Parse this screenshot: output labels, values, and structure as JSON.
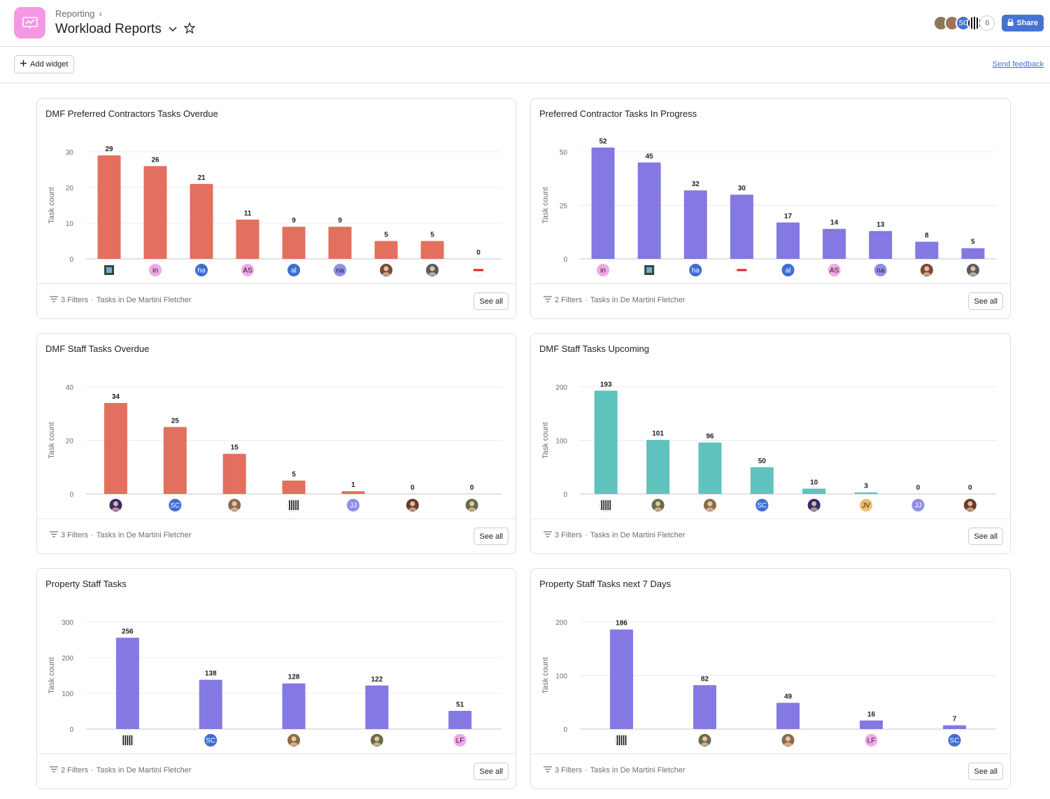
{
  "header": {
    "breadcrumb": "Reporting",
    "breadcrumb_sep": "›",
    "title": "Workload Reports",
    "title_menu_icon": "chevron-down-icon",
    "star_icon": "star-icon",
    "member_count": "6",
    "share_label": "Share",
    "members": [
      {
        "initials": "",
        "color": "#8a7a5a"
      },
      {
        "initials": "",
        "color": "#a0745a"
      },
      {
        "initials": "SC",
        "color": "#4573d2"
      },
      {
        "initials": "",
        "color": "#ffffff"
      }
    ]
  },
  "toolbar": {
    "add_widget_label": "Add widget",
    "feedback_label": "Send feedback"
  },
  "colors": {
    "red": "#e36f5f",
    "purple": "#8479e2",
    "teal": "#5fc2bd"
  },
  "widgets": [
    {
      "title": "DMF Preferred Contractors Tasks Overdue",
      "filters": "3 Filters",
      "scope": "Tasks in De Martini Fletcher",
      "see_all": "See all",
      "chart_data": {
        "type": "bar",
        "color": "#e36f5f",
        "ylabel": "Task count",
        "ylim": [
          0,
          30
        ],
        "yticks": [
          0,
          10,
          20,
          30
        ],
        "categories": [
          "sq",
          "in",
          "ha",
          "AS",
          "al",
          "na",
          "ph1",
          "ph2",
          "fr"
        ],
        "cat_avatars": [
          {
            "t": "",
            "bg": "#2d4a3e",
            "fg": "#fff",
            "shape": "square"
          },
          {
            "t": "in",
            "bg": "#f1a8e8",
            "fg": "#1e1f21"
          },
          {
            "t": "ha",
            "bg": "#3e6ed0",
            "fg": "#fff"
          },
          {
            "t": "AS",
            "bg": "#f1a8e8",
            "fg": "#1e1f21"
          },
          {
            "t": "al",
            "bg": "#3e6ed0",
            "fg": "#fff"
          },
          {
            "t": "na",
            "bg": "#8f8fe8",
            "fg": "#1e1f21"
          },
          {
            "t": "",
            "bg": "#7a4a35",
            "fg": "#fff"
          },
          {
            "t": "",
            "bg": "#5a5a5a",
            "fg": "#fff"
          },
          {
            "t": "",
            "bg": "#ffffff",
            "fg": "#e02020",
            "shape": "logo"
          }
        ],
        "values": [
          29,
          26,
          21,
          11,
          9,
          9,
          5,
          5,
          0
        ]
      }
    },
    {
      "title": "Preferred Contractor Tasks In Progress",
      "filters": "2 Filters",
      "scope": "Tasks in De Martini Fletcher",
      "see_all": "See all",
      "chart_data": {
        "type": "bar",
        "color": "#8479e2",
        "ylabel": "Task count",
        "ylim": [
          0,
          50
        ],
        "yticks": [
          0,
          25,
          50
        ],
        "categories": [
          "in",
          "sq",
          "ha",
          "fr",
          "al",
          "AS",
          "na",
          "ph1",
          "ph2"
        ],
        "cat_avatars": [
          {
            "t": "in",
            "bg": "#f1a8e8",
            "fg": "#1e1f21"
          },
          {
            "t": "",
            "bg": "#2d4a3e",
            "fg": "#fff",
            "shape": "square"
          },
          {
            "t": "ha",
            "bg": "#3e6ed0",
            "fg": "#fff"
          },
          {
            "t": "",
            "bg": "#ffffff",
            "fg": "#e02020",
            "shape": "logo"
          },
          {
            "t": "al",
            "bg": "#3e6ed0",
            "fg": "#fff"
          },
          {
            "t": "AS",
            "bg": "#f1a8e8",
            "fg": "#1e1f21"
          },
          {
            "t": "na",
            "bg": "#8f8fe8",
            "fg": "#1e1f21"
          },
          {
            "t": "",
            "bg": "#7a4a35",
            "fg": "#fff"
          },
          {
            "t": "",
            "bg": "#5a5a5a",
            "fg": "#fff"
          }
        ],
        "values": [
          52,
          45,
          32,
          30,
          17,
          14,
          13,
          8,
          5
        ]
      }
    },
    {
      "title": "DMF Staff Tasks Overdue",
      "filters": "3 Filters",
      "scope": "Tasks in De Martini Fletcher",
      "see_all": "See all",
      "chart_data": {
        "type": "bar",
        "color": "#e36f5f",
        "ylabel": "Task count",
        "ylim": [
          0,
          40
        ],
        "yticks": [
          0,
          20,
          40
        ],
        "categories": [
          "galaxy",
          "SC",
          "ph3",
          "logo",
          "JJ",
          "ph4",
          "ph5"
        ],
        "cat_avatars": [
          {
            "t": "",
            "bg": "#3a2a6a",
            "fg": "#fff"
          },
          {
            "t": "SC",
            "bg": "#3e6ed0",
            "fg": "#fff"
          },
          {
            "t": "",
            "bg": "#8a6a4a",
            "fg": "#fff"
          },
          {
            "t": "",
            "bg": "#ffffff",
            "fg": "#111",
            "shape": "stripes"
          },
          {
            "t": "JJ",
            "bg": "#8f8fe8",
            "fg": "#fff"
          },
          {
            "t": "",
            "bg": "#6a3a2a",
            "fg": "#fff"
          },
          {
            "t": "",
            "bg": "#6a6a4a",
            "fg": "#fff"
          }
        ],
        "values": [
          34,
          25,
          15,
          5,
          1,
          0,
          0
        ]
      }
    },
    {
      "title": "DMF Staff Tasks Upcoming",
      "filters": "3 Filters",
      "scope": "Tasks in De Martini Fletcher",
      "see_all": "See all",
      "chart_data": {
        "type": "bar",
        "color": "#5fc2bd",
        "ylabel": "Task count",
        "ylim": [
          0,
          200
        ],
        "yticks": [
          0,
          100,
          200
        ],
        "categories": [
          "logo",
          "ph5",
          "ph3",
          "SC",
          "galaxy",
          "JV",
          "JJ",
          "ph4"
        ],
        "cat_avatars": [
          {
            "t": "",
            "bg": "#ffffff",
            "fg": "#111",
            "shape": "stripes"
          },
          {
            "t": "",
            "bg": "#6a6a4a",
            "fg": "#fff"
          },
          {
            "t": "",
            "bg": "#8a6a4a",
            "fg": "#fff"
          },
          {
            "t": "SC",
            "bg": "#3e6ed0",
            "fg": "#fff"
          },
          {
            "t": "",
            "bg": "#3a2a6a",
            "fg": "#fff"
          },
          {
            "t": "JV",
            "bg": "#f1bd6c",
            "fg": "#1e1f21"
          },
          {
            "t": "JJ",
            "bg": "#8f8fe8",
            "fg": "#fff"
          },
          {
            "t": "",
            "bg": "#6a3a2a",
            "fg": "#fff"
          }
        ],
        "values": [
          193,
          101,
          96,
          50,
          10,
          3,
          0,
          0
        ]
      }
    },
    {
      "title": "Property Staff Tasks",
      "filters": "2 Filters",
      "scope": "Tasks in De Martini Fletcher",
      "see_all": "See all",
      "chart_data": {
        "type": "bar",
        "color": "#8479e2",
        "ylabel": "Task count",
        "ylim": [
          0,
          300
        ],
        "yticks": [
          0,
          100,
          200,
          300
        ],
        "categories": [
          "logo",
          "SC",
          "ph3",
          "ph5",
          "LF"
        ],
        "cat_avatars": [
          {
            "t": "",
            "bg": "#ffffff",
            "fg": "#111",
            "shape": "stripes"
          },
          {
            "t": "SC",
            "bg": "#3e6ed0",
            "fg": "#fff"
          },
          {
            "t": "",
            "bg": "#8a6a4a",
            "fg": "#fff"
          },
          {
            "t": "",
            "bg": "#6a6a4a",
            "fg": "#fff"
          },
          {
            "t": "LF",
            "bg": "#f1a8e8",
            "fg": "#1e1f21"
          }
        ],
        "values": [
          256,
          138,
          128,
          122,
          51
        ]
      }
    },
    {
      "title": "Property Staff Tasks next 7 Days",
      "filters": "3 Filters",
      "scope": "Tasks in De Martini Fletcher",
      "see_all": "See all",
      "chart_data": {
        "type": "bar",
        "color": "#8479e2",
        "ylabel": "Task count",
        "ylim": [
          0,
          200
        ],
        "yticks": [
          0,
          100,
          200
        ],
        "categories": [
          "logo",
          "ph5",
          "ph3",
          "LF",
          "SC"
        ],
        "cat_avatars": [
          {
            "t": "",
            "bg": "#ffffff",
            "fg": "#111",
            "shape": "stripes"
          },
          {
            "t": "",
            "bg": "#6a6a4a",
            "fg": "#fff"
          },
          {
            "t": "",
            "bg": "#8a6a4a",
            "fg": "#fff"
          },
          {
            "t": "LF",
            "bg": "#f1a8e8",
            "fg": "#1e1f21"
          },
          {
            "t": "SC",
            "bg": "#3e6ed0",
            "fg": "#fff"
          }
        ],
        "values": [
          186,
          82,
          49,
          16,
          7
        ]
      }
    }
  ]
}
